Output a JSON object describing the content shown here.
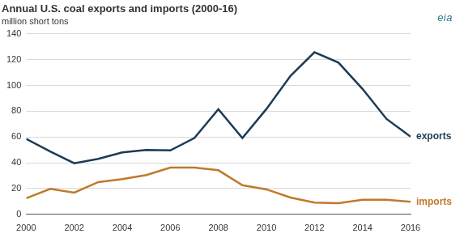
{
  "chart_data": {
    "type": "line",
    "title": "Annual U.S. coal exports and imports (2000-16)",
    "subtitle": "million short tons",
    "annotations": [
      "eia"
    ],
    "x": [
      2000,
      2001,
      2002,
      2003,
      2004,
      2005,
      2006,
      2007,
      2008,
      2009,
      2010,
      2011,
      2012,
      2013,
      2014,
      2015,
      2016
    ],
    "series": [
      {
        "name": "exports",
        "color": "#1c3b57",
        "values": [
          58.5,
          48.7,
          39.6,
          43.0,
          48.0,
          49.9,
          49.6,
          59.2,
          81.5,
          59.1,
          81.7,
          107.3,
          125.7,
          117.7,
          97.3,
          74.0,
          60.3
        ]
      },
      {
        "name": "imports",
        "color": "#c0792b",
        "values": [
          12.5,
          19.8,
          16.9,
          25.0,
          27.3,
          30.5,
          36.3,
          36.3,
          34.2,
          22.6,
          19.4,
          13.1,
          9.2,
          8.6,
          11.3,
          11.3,
          9.8
        ]
      }
    ],
    "xlim": [
      2000,
      2016
    ],
    "xticks": [
      2000,
      2002,
      2004,
      2006,
      2008,
      2010,
      2012,
      2014,
      2016
    ],
    "ylim": [
      0,
      140
    ],
    "yticks": [
      0,
      20,
      40,
      60,
      80,
      100,
      120,
      140
    ],
    "grid": true
  }
}
